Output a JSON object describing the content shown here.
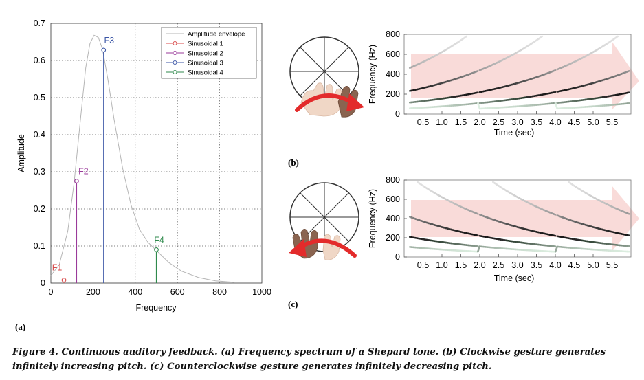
{
  "chart_data": [
    {
      "panel": "(a)",
      "type": "line",
      "xlabel": "Frequency",
      "ylabel": "Amplitude",
      "xlim": [
        0,
        1000
      ],
      "ylim": [
        0,
        0.7
      ],
      "xticks": [
        "0",
        "200",
        "400",
        "600",
        "800",
        "1000"
      ],
      "yticks": [
        "0",
        "0.1",
        "0.2",
        "0.3",
        "0.4",
        "0.5",
        "0.6",
        "0.7"
      ],
      "grid": true,
      "legend_position": "top-right",
      "envelope": {
        "name": "Amplitude envelope",
        "color": "#b5b5b5",
        "points": [
          [
            0,
            0.02
          ],
          [
            40,
            0.05
          ],
          [
            80,
            0.14
          ],
          [
            110,
            0.27
          ],
          [
            140,
            0.44
          ],
          [
            165,
            0.58
          ],
          [
            185,
            0.645
          ],
          [
            205,
            0.668
          ],
          [
            225,
            0.662
          ],
          [
            245,
            0.63
          ],
          [
            270,
            0.55
          ],
          [
            300,
            0.44
          ],
          [
            340,
            0.31
          ],
          [
            380,
            0.21
          ],
          [
            420,
            0.145
          ],
          [
            460,
            0.11
          ],
          [
            500,
            0.088
          ],
          [
            560,
            0.055
          ],
          [
            620,
            0.032
          ],
          [
            700,
            0.015
          ],
          [
            780,
            0.006
          ],
          [
            870,
            0.002
          ]
        ]
      },
      "series": [
        {
          "name": "Sinusoidal 1",
          "label": "F1",
          "x": 62,
          "y": 0.008,
          "color": "#d84a4a"
        },
        {
          "name": "Sinusoidal 2",
          "label": "F2",
          "x": 122,
          "y": 0.275,
          "color": "#9a3a9a"
        },
        {
          "name": "Sinusoidal 3",
          "label": "F3",
          "x": 250,
          "y": 0.628,
          "color": "#3b56a6"
        },
        {
          "name": "Sinusoidal 4",
          "label": "F4",
          "x": 500,
          "y": 0.09,
          "color": "#2f8a4c"
        }
      ]
    },
    {
      "panel": "(b)",
      "type": "heatmap",
      "xlabel": "Time (sec)",
      "ylabel": "Frequency (Hz)",
      "xlim": [
        0,
        6
      ],
      "ylim": [
        0,
        800
      ],
      "xticks": [
        "0.5",
        "1.0",
        "1.5",
        "2.0",
        "2.5",
        "3.0",
        "3.5",
        "4.0",
        "4.5",
        "5.0",
        "5.5"
      ],
      "yticks": [
        "0",
        "200",
        "400",
        "600",
        "800"
      ],
      "direction": "increasing"
    },
    {
      "panel": "(c)",
      "type": "heatmap",
      "xlabel": "Time (sec)",
      "ylabel": "Frequency (Hz)",
      "xlim": [
        0,
        6
      ],
      "ylim": [
        0,
        800
      ],
      "xticks": [
        "0.5",
        "1.0",
        "1.5",
        "2.0",
        "2.5",
        "3.0",
        "3.5",
        "4.0",
        "4.5",
        "5.0",
        "5.5"
      ],
      "yticks": [
        "0",
        "200",
        "400",
        "600",
        "800"
      ],
      "direction": "decreasing"
    }
  ],
  "labels": {
    "a": "(a)",
    "b": "(b)",
    "c": "(c)"
  },
  "caption": "Figure 4. Continuous auditory feedback. (a) Frequency spectrum of a Shepard tone. (b) Clockwise gesture generates infinitely increasing pitch. (c) Counterclockwise gesture generates infinitely decreasing pitch."
}
